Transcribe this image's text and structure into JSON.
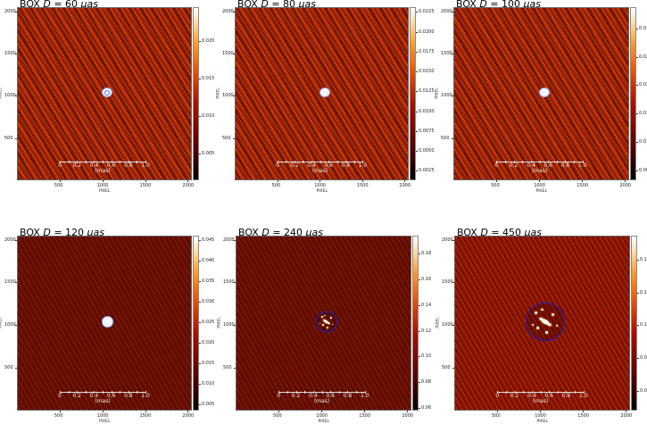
{
  "figure": {
    "axis_label": "PIXEL",
    "x_ticks": [
      500,
      1000,
      1500,
      2000
    ],
    "y_ticks": [
      500,
      1000,
      1500,
      2000
    ],
    "pixel_range": [
      0,
      2048
    ],
    "scalebar": {
      "ticks": [
        "0",
        "0.2",
        "0.4",
        "0.6",
        "0.8",
        "1.0"
      ],
      "label": "(mas)"
    },
    "colormap": "afmhot",
    "circle_color": "#2020c0"
  },
  "chart_data": [
    {
      "type": "heatmap",
      "title_prefix": "BOX",
      "title_var": "D",
      "title_value": "= 60",
      "title_unit": "μas",
      "box_diameter_uas": 60,
      "colorbar": {
        "range": [
          0.0014,
          0.0246
        ],
        "ticks": [
          "0.005",
          "0.010",
          "0.015",
          "0.020"
        ]
      }
    },
    {
      "type": "heatmap",
      "title_prefix": "BOX",
      "title_var": "D",
      "title_value": "= 80",
      "title_unit": "μas",
      "box_diameter_uas": 80,
      "colorbar": {
        "range": [
          0.0013,
          0.0231
        ],
        "ticks": [
          "0.0025",
          "0.0050",
          "0.0075",
          "0.0100",
          "0.0125",
          "0.0150",
          "0.0175",
          "0.0200",
          "0.0225"
        ]
      }
    },
    {
      "type": "heatmap",
      "title_prefix": "BOX",
      "title_var": "D",
      "title_value": "= 100",
      "title_unit": "μas",
      "box_diameter_uas": 100,
      "colorbar": {
        "range": [
          0.0032,
          0.0338
        ],
        "ticks": [
          "0.005",
          "0.010",
          "0.015",
          "0.020",
          "0.025",
          "0.030"
        ]
      }
    },
    {
      "type": "heatmap",
      "title_prefix": "BOX",
      "title_var": "D",
      "title_value": "= 120",
      "title_unit": "μas",
      "box_diameter_uas": 120,
      "colorbar": {
        "range": [
          0.0035,
          0.046
        ],
        "ticks": [
          "0.005",
          "0.010",
          "0.015",
          "0.020",
          "0.025",
          "0.030",
          "0.035",
          "0.040",
          "0.045"
        ]
      }
    },
    {
      "type": "heatmap",
      "title_prefix": "BOX",
      "title_var": "D",
      "title_value": "= 240",
      "title_unit": "μas",
      "box_diameter_uas": 240,
      "colorbar": {
        "range": [
          0.058,
          0.194
        ],
        "ticks": [
          "0.06",
          "0.08",
          "0.10",
          "0.12",
          "0.14",
          "0.16",
          "0.18"
        ]
      }
    },
    {
      "type": "heatmap",
      "title_prefix": "BOX",
      "title_var": "D",
      "title_value": "= 450",
      "title_unit": "μas",
      "box_diameter_uas": 450,
      "colorbar": {
        "range": [
          0.0477,
          0.155
        ],
        "ticks": [
          "0.06",
          "0.08",
          "0.10",
          "0.12",
          "0.14"
        ]
      }
    }
  ]
}
